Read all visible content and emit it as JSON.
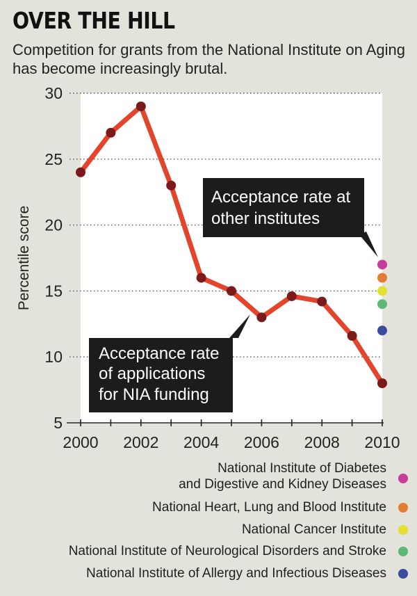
{
  "header": {
    "title": "OVER THE HILL",
    "subtitle": "Competition for grants from the National Institute on Aging has become increasingly brutal."
  },
  "chart_data": {
    "type": "line",
    "title": "OVER THE HILL",
    "ylabel": "Percentile score",
    "xlabel": "",
    "ylim": [
      5,
      30
    ],
    "yticks": [
      "5",
      "10",
      "15",
      "20",
      "25",
      "30"
    ],
    "xlim": [
      2000,
      2010
    ],
    "xticks": [
      "2000",
      "2002",
      "2004",
      "2006",
      "2008",
      "2010"
    ],
    "grid": "dotted horizontal",
    "series": [
      {
        "name": "NIA acceptance rate",
        "color": "#e2452b",
        "x": [
          2000,
          2001,
          2002,
          2003,
          2004,
          2005,
          2006,
          2007,
          2008,
          2009,
          2010
        ],
        "values": [
          24,
          27,
          29,
          23,
          16,
          15,
          13,
          14.6,
          14.2,
          11.6,
          8
        ]
      }
    ],
    "other_institutes": [
      {
        "name": "National Institute of Diabetes and Digestive and Kidney Diseases",
        "x": 2010,
        "value": 17,
        "color": "#c83c9a"
      },
      {
        "name": "National Heart, Lung and Blood Institute",
        "x": 2010,
        "value": 16,
        "color": "#e47d33"
      },
      {
        "name": "National Cancer Institute",
        "x": 2010,
        "value": 15,
        "color": "#e3e032"
      },
      {
        "name": "National Institute of Neurological Disorders and Stroke",
        "x": 2010,
        "value": 14,
        "color": "#5cb873"
      },
      {
        "name": "National Institute of Allergy and Infectious Diseases",
        "x": 2010,
        "value": 12,
        "color": "#3b4da0"
      }
    ],
    "annotations": {
      "other": [
        "Acceptance rate at",
        "other institutes"
      ],
      "nia": [
        "Acceptance rate",
        "of applications",
        "for NIA funding"
      ]
    }
  },
  "legend": {
    "items": [
      {
        "lines": [
          "National Institute of Diabetes",
          "and Digestive and Kidney Diseases"
        ],
        "color": "#c83c9a"
      },
      {
        "lines": [
          "National Heart, Lung and Blood Institute"
        ],
        "color": "#e47d33"
      },
      {
        "lines": [
          "National Cancer Institute"
        ],
        "color": "#e3e032"
      },
      {
        "lines": [
          "National Institute of Neurological Disorders and Stroke"
        ],
        "color": "#5cb873"
      },
      {
        "lines": [
          "National Institute of Allergy and Infectious Diseases"
        ],
        "color": "#3b4da0"
      }
    ]
  }
}
